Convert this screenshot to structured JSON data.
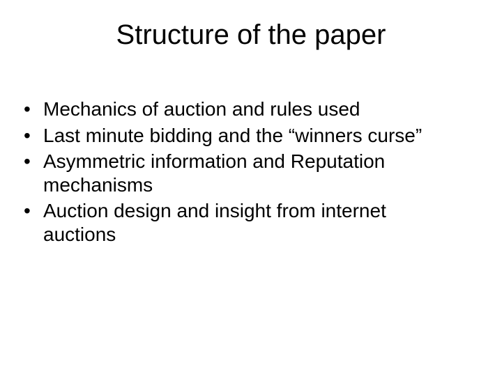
{
  "title": "Structure of the paper",
  "bullets": [
    "Mechanics of auction and rules used",
    "Last minute bidding and the “winners curse”",
    "Asymmetric information and Reputation mechanisms",
    "Auction design and insight from internet auctions"
  ],
  "style": {
    "background_color": "#ffffff",
    "text_color": "#000000",
    "title_fontsize": 40,
    "body_fontsize": 28,
    "font_family": "Arial"
  }
}
